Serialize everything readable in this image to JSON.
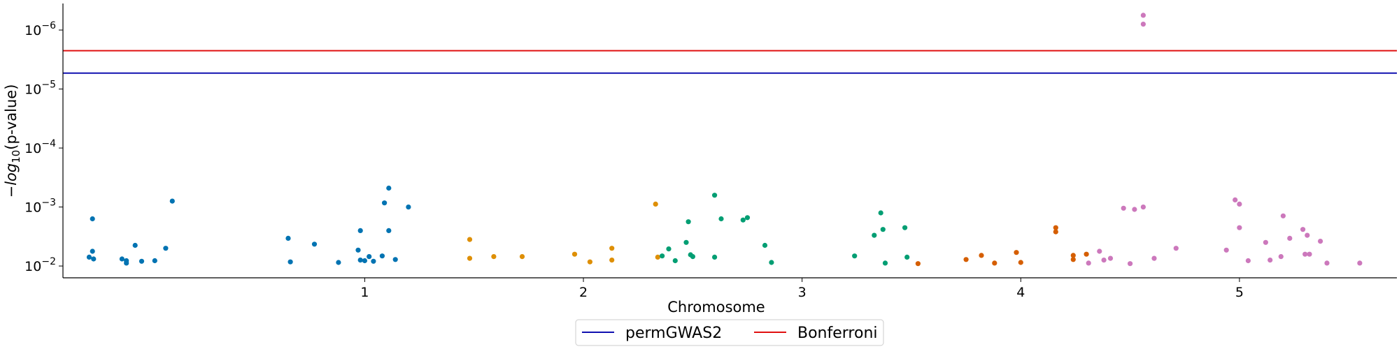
{
  "chart_data": {
    "type": "scatter",
    "title": "",
    "xlabel": "Chromosome",
    "ylabel_prefix": "−",
    "ylabel_log": "log",
    "ylabel_sub": "10",
    "ylabel_suffix": "(p-value)",
    "y_scale": "log-inverted",
    "ylim_log10": [
      -1.8,
      -6.45
    ],
    "y_ticks": [
      {
        "base": "10",
        "exp": "−6",
        "log10": -6
      },
      {
        "base": "10",
        "exp": "−5",
        "log10": -5
      },
      {
        "base": "10",
        "exp": "−4",
        "log10": -4
      },
      {
        "base": "10",
        "exp": "−3",
        "log10": -3
      },
      {
        "base": "10",
        "exp": "−2",
        "log10": -2
      }
    ],
    "xlim": [
      -0.38,
      5.72
    ],
    "x_ticks": [
      {
        "label": "1",
        "value": 1.0
      },
      {
        "label": "2",
        "value": 2.0
      },
      {
        "label": "3",
        "value": 3.0
      },
      {
        "label": "4",
        "value": 4.0
      },
      {
        "label": "5",
        "value": 5.0
      }
    ],
    "thresholds": [
      {
        "name": "permGWAS2",
        "log10": -5.27,
        "color": "#1010b0"
      },
      {
        "name": "Bonferroni",
        "log10": -5.65,
        "color": "#e01010"
      }
    ],
    "legend": {
      "position": "bottom-center",
      "entries": [
        "permGWAS2",
        "Bonferroni"
      ]
    },
    "grid": false,
    "series": [
      {
        "chromosome": "1",
        "color": "#0173b2",
        "points": [
          [
            -0.26,
            -2.15
          ],
          [
            -0.245,
            -2.25
          ],
          [
            -0.24,
            -2.12
          ],
          [
            -0.245,
            -2.8
          ],
          [
            -0.11,
            -2.12
          ],
          [
            -0.09,
            -2.05
          ],
          [
            -0.09,
            -2.09
          ],
          [
            -0.05,
            -2.35
          ],
          [
            -0.02,
            -2.08
          ],
          [
            0.04,
            -2.09
          ],
          [
            0.09,
            -2.3
          ],
          [
            0.12,
            -3.1
          ],
          [
            0.65,
            -2.47
          ],
          [
            0.66,
            -2.07
          ],
          [
            0.77,
            -2.37
          ],
          [
            0.88,
            -2.06
          ],
          [
            0.97,
            -2.27
          ],
          [
            0.98,
            -2.6
          ],
          [
            0.98,
            -2.1
          ],
          [
            1.0,
            -2.09
          ],
          [
            1.02,
            -2.16
          ],
          [
            1.04,
            -2.08
          ],
          [
            1.08,
            -2.17
          ],
          [
            1.09,
            -3.07
          ],
          [
            1.11,
            -3.32
          ],
          [
            1.11,
            -2.6
          ],
          [
            1.14,
            -2.11
          ],
          [
            1.2,
            -3.0
          ]
        ]
      },
      {
        "chromosome": "2",
        "color": "#de8f05",
        "points": [
          [
            1.48,
            -2.45
          ],
          [
            1.48,
            -2.13
          ],
          [
            1.59,
            -2.16
          ],
          [
            1.72,
            -2.16
          ],
          [
            1.96,
            -2.2
          ],
          [
            2.03,
            -2.07
          ],
          [
            2.13,
            -2.1
          ],
          [
            2.13,
            -2.3
          ],
          [
            2.33,
            -3.05
          ],
          [
            2.34,
            -2.15
          ]
        ]
      },
      {
        "chromosome": "3",
        "color": "#029e73",
        "points": [
          [
            2.36,
            -2.17
          ],
          [
            2.39,
            -2.29
          ],
          [
            2.42,
            -2.09
          ],
          [
            2.47,
            -2.4
          ],
          [
            2.48,
            -2.75
          ],
          [
            2.49,
            -2.19
          ],
          [
            2.5,
            -2.16
          ],
          [
            2.6,
            -3.2
          ],
          [
            2.6,
            -2.15
          ],
          [
            2.63,
            -2.8
          ],
          [
            2.73,
            -2.78
          ],
          [
            2.75,
            -2.82
          ],
          [
            2.83,
            -2.35
          ],
          [
            2.86,
            -2.06
          ],
          [
            3.24,
            -2.17
          ],
          [
            3.33,
            -2.52
          ],
          [
            3.36,
            -2.9
          ],
          [
            3.37,
            -2.62
          ],
          [
            3.38,
            -2.05
          ],
          [
            3.47,
            -2.65
          ],
          [
            3.48,
            -2.15
          ]
        ]
      },
      {
        "chromosome": "4",
        "color": "#d55e00",
        "points": [
          [
            3.53,
            -2.04
          ],
          [
            3.75,
            -2.11
          ],
          [
            3.82,
            -2.18
          ],
          [
            3.88,
            -2.05
          ],
          [
            3.98,
            -2.23
          ],
          [
            4.0,
            -2.06
          ],
          [
            4.16,
            -2.65
          ],
          [
            4.16,
            -2.58
          ],
          [
            4.24,
            -2.18
          ],
          [
            4.24,
            -2.11
          ],
          [
            4.3,
            -2.2
          ]
        ]
      },
      {
        "chromosome": "5",
        "color": "#cc78bc",
        "points": [
          [
            4.31,
            -2.05
          ],
          [
            4.36,
            -2.25
          ],
          [
            4.38,
            -2.1
          ],
          [
            4.41,
            -2.13
          ],
          [
            4.47,
            -2.98
          ],
          [
            4.5,
            -2.04
          ],
          [
            4.52,
            -2.96
          ],
          [
            4.56,
            -6.25
          ],
          [
            4.56,
            -6.1
          ],
          [
            4.56,
            -3.0
          ],
          [
            4.61,
            -2.13
          ],
          [
            4.71,
            -2.3
          ],
          [
            4.94,
            -2.27
          ],
          [
            4.98,
            -3.12
          ],
          [
            5.0,
            -3.05
          ],
          [
            5.0,
            -2.65
          ],
          [
            5.04,
            -2.09
          ],
          [
            5.12,
            -2.4
          ],
          [
            5.14,
            -2.1
          ],
          [
            5.19,
            -2.16
          ],
          [
            5.2,
            -2.85
          ],
          [
            5.23,
            -2.47
          ],
          [
            5.29,
            -2.62
          ],
          [
            5.3,
            -2.2
          ],
          [
            5.31,
            -2.52
          ],
          [
            5.32,
            -2.2
          ],
          [
            5.37,
            -2.42
          ],
          [
            5.4,
            -2.05
          ],
          [
            5.55,
            -2.05
          ]
        ]
      }
    ]
  }
}
